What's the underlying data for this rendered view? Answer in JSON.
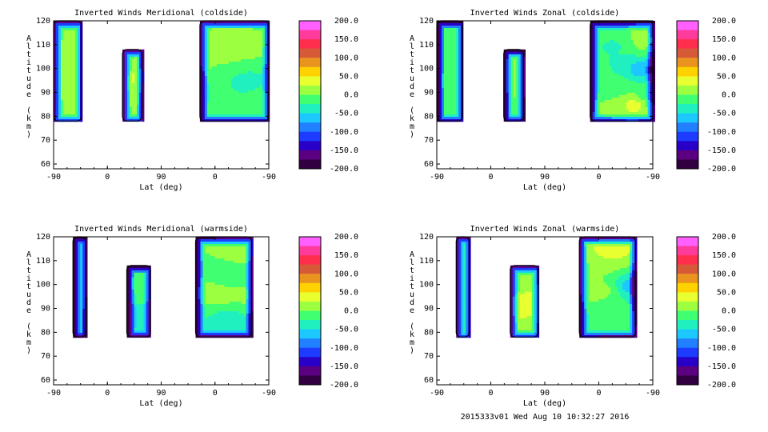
{
  "footer": "2015333v01 Wed Aug 10 10:32:27 2016",
  "colorbar": {
    "labels": [
      "200.0",
      "150.0",
      "100.0",
      "50.0",
      "0.0",
      "-50.0",
      "-100.0",
      "-150.0",
      "-200.0"
    ],
    "colors": [
      "#ff60ff",
      "#ff3c9c",
      "#ff2e4c",
      "#d65a38",
      "#e8941e",
      "#ffd200",
      "#e8ff30",
      "#9cff40",
      "#40ff70",
      "#20f0c0",
      "#1cc8ff",
      "#2080ff",
      "#1e3cff",
      "#2800c8",
      "#5a0080",
      "#320040"
    ]
  },
  "chart_data": [
    {
      "type": "contour",
      "title": "Inverted Winds Meridional (coldside)",
      "xlabel": "Lat (deg)",
      "ylabel": "Altitude (km)",
      "xticks": [
        "-90",
        "0",
        "90",
        "0",
        "-90"
      ],
      "yticks": [
        "60",
        "70",
        "80",
        "90",
        "100",
        "110",
        "120"
      ],
      "ylim": [
        58,
        120
      ],
      "clim": [
        -200,
        200
      ],
      "blobs": [
        {
          "lat": -72,
          "alt": 100,
          "value": 20
        },
        {
          "lat": 48,
          "alt": 98,
          "value": 35
        },
        {
          "lat": 35,
          "alt": 100,
          "value": 10
        },
        {
          "lat": -30,
          "alt": 112,
          "value": 25
        },
        {
          "lat": -55,
          "alt": 94,
          "value": -40
        },
        {
          "lat": -75,
          "alt": 88,
          "value": -5
        }
      ]
    },
    {
      "type": "contour",
      "title": "Inverted Winds Zonal (coldside)",
      "xlabel": "Lat (deg)",
      "ylabel": "Altitude (km)",
      "xticks": [
        "-90",
        "0",
        "90",
        "0",
        "-90"
      ],
      "yticks": [
        "60",
        "70",
        "80",
        "90",
        "100",
        "110",
        "120"
      ],
      "ylim": [
        58,
        120
      ],
      "clim": [
        -200,
        200
      ],
      "blobs": [
        {
          "lat": -70,
          "alt": 100,
          "value": -80
        },
        {
          "lat": -78,
          "alt": 112,
          "value": 30
        },
        {
          "lat": -75,
          "alt": 88,
          "value": -30
        },
        {
          "lat": 48,
          "alt": 98,
          "value": 5
        },
        {
          "lat": -25,
          "alt": 110,
          "value": -30
        },
        {
          "lat": -60,
          "alt": 86,
          "value": 60
        },
        {
          "lat": -30,
          "alt": 92,
          "value": -10
        }
      ]
    },
    {
      "type": "contour",
      "title": "Inverted Winds Meridional (warmside)",
      "xlabel": "Lat (deg)",
      "ylabel": "Altitude (km)",
      "xticks": [
        "-90",
        "0",
        "90",
        "0",
        "-90"
      ],
      "yticks": [
        "60",
        "70",
        "80",
        "90",
        "100",
        "110",
        "120"
      ],
      "ylim": [
        58,
        120
      ],
      "clim": [
        -200,
        200
      ],
      "blobs": [
        {
          "lat": -52,
          "alt": 96,
          "value": 10
        },
        {
          "lat": -50,
          "alt": 115,
          "value": 20
        },
        {
          "lat": 50,
          "alt": 100,
          "value": 0
        },
        {
          "lat": 45,
          "alt": 88,
          "value": -40
        },
        {
          "lat": -5,
          "alt": 96,
          "value": 20
        },
        {
          "lat": -25,
          "alt": 104,
          "value": -20
        },
        {
          "lat": -20,
          "alt": 86,
          "value": -50
        }
      ]
    },
    {
      "type": "contour",
      "title": "Inverted Winds Zonal (warmside)",
      "xlabel": "Lat (deg)",
      "ylabel": "Altitude (km)",
      "xticks": [
        "-90",
        "0",
        "90",
        "0",
        "-90"
      ],
      "yticks": [
        "60",
        "70",
        "80",
        "90",
        "100",
        "110",
        "120"
      ],
      "ylim": [
        58,
        120
      ],
      "clim": [
        -200,
        200
      ],
      "blobs": [
        {
          "lat": -52,
          "alt": 100,
          "value": -80
        },
        {
          "lat": 55,
          "alt": 94,
          "value": 40
        },
        {
          "lat": 45,
          "alt": 100,
          "value": 10
        },
        {
          "lat": -10,
          "alt": 112,
          "value": 25
        },
        {
          "lat": -25,
          "alt": 115,
          "value": 40
        },
        {
          "lat": -5,
          "alt": 98,
          "value": 15
        },
        {
          "lat": -20,
          "alt": 86,
          "value": -20
        }
      ]
    }
  ]
}
